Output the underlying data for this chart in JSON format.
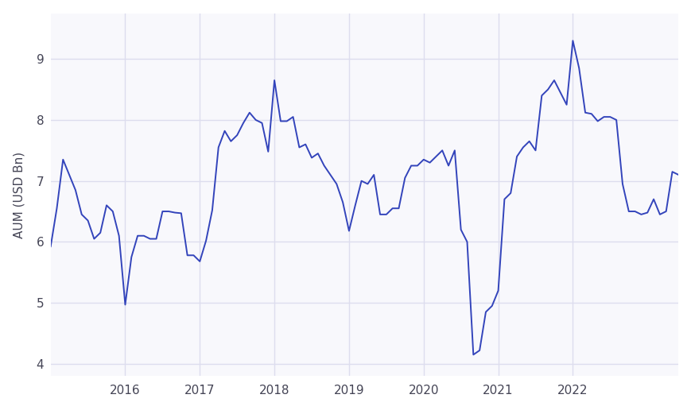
{
  "title": "",
  "ylabel": "AUM (USD Bn)",
  "line_color": "#3344bb",
  "background_color": "#ffffff",
  "plot_bg_color": "#f8f8fc",
  "grid_color": "#ddddee",
  "ylim": [
    3.8,
    9.75
  ],
  "yticks": [
    4,
    5,
    6,
    7,
    8,
    9
  ],
  "values": [
    5.92,
    6.55,
    7.35,
    7.1,
    6.85,
    6.45,
    6.35,
    6.05,
    6.15,
    6.6,
    6.5,
    6.1,
    4.97,
    5.75,
    6.1,
    6.1,
    6.05,
    6.05,
    6.5,
    6.5,
    6.48,
    6.47,
    5.78,
    5.78,
    5.68,
    6.02,
    6.52,
    7.55,
    7.82,
    7.65,
    7.75,
    7.95,
    8.12,
    8.0,
    7.95,
    7.48,
    8.65,
    7.98,
    7.98,
    8.05,
    7.55,
    7.6,
    7.38,
    7.45,
    7.25,
    7.1,
    6.95,
    6.65,
    6.18,
    6.6,
    7.0,
    6.95,
    7.1,
    6.45,
    6.45,
    6.55,
    6.55,
    7.05,
    7.25,
    7.25,
    7.35,
    7.3,
    7.4,
    7.5,
    7.25,
    7.5,
    6.2,
    6.0,
    4.15,
    4.22,
    4.85,
    4.95,
    5.2,
    6.7,
    6.8,
    7.4,
    7.55,
    7.65,
    7.5,
    8.4,
    8.5,
    8.65,
    8.45,
    8.25,
    9.3,
    8.85,
    8.12,
    8.1,
    7.98,
    8.05,
    8.05,
    8.0,
    6.95,
    6.5,
    6.5,
    6.45,
    6.48,
    6.7,
    6.45,
    6.5,
    7.15,
    7.1
  ],
  "xtick_labels": [
    "2016",
    "2017",
    "2018",
    "2019",
    "2020",
    "2021",
    "2022"
  ],
  "xtick_positions": [
    12,
    24,
    36,
    48,
    60,
    72,
    84
  ]
}
